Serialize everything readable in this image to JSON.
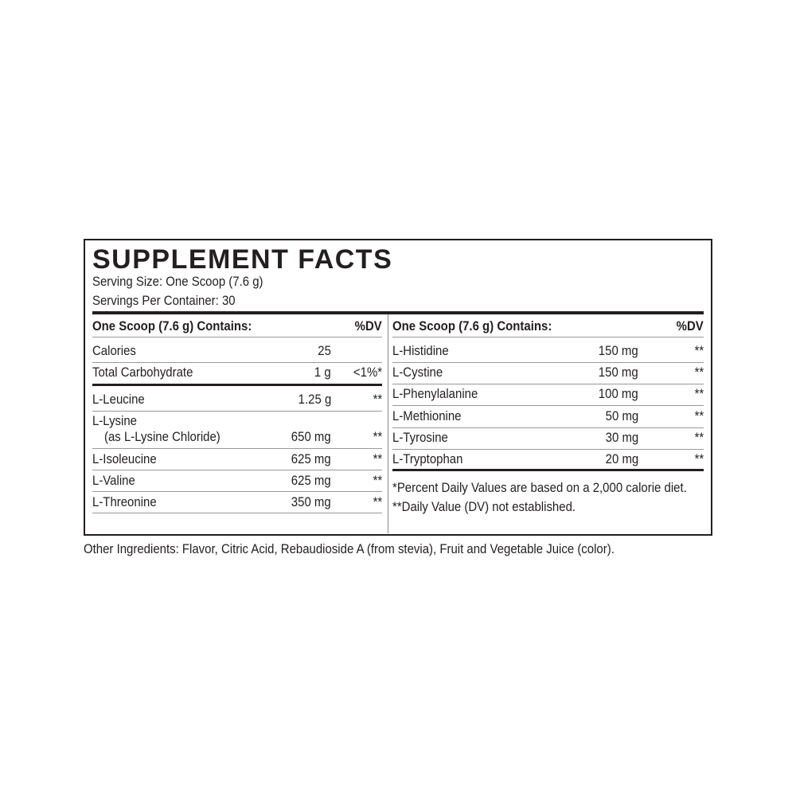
{
  "title": "SUPPLEMENT FACTS",
  "serving_size": "Serving Size: One Scoop (7.6 g)",
  "servings_per_container": "Servings Per Container: 30",
  "left": {
    "header": "One Scoop (7.6 g) Contains:",
    "dv_header": "%DV",
    "rows": [
      {
        "name": "Calories",
        "amount": "25",
        "dv": ""
      },
      {
        "name": "Total Carbohydrate",
        "amount": "1 g",
        "dv": "<1%*"
      },
      {
        "name": "L-Leucine",
        "amount": "1.25 g",
        "dv": "**"
      },
      {
        "name": "L-Lysine",
        "sub": "(as L-Lysine Chloride)",
        "amount": "650 mg",
        "dv": "**"
      },
      {
        "name": "L-Isoleucine",
        "amount": "625 mg",
        "dv": "**"
      },
      {
        "name": "L-Valine",
        "amount": "625 mg",
        "dv": "**"
      },
      {
        "name": "L-Threonine",
        "amount": "350 mg",
        "dv": "**"
      }
    ]
  },
  "right": {
    "header": "One Scoop (7.6 g) Contains:",
    "dv_header": "%DV",
    "rows": [
      {
        "name": "L-Histidine",
        "amount": "150 mg",
        "dv": "**"
      },
      {
        "name": "L-Cystine",
        "amount": "150 mg",
        "dv": "**"
      },
      {
        "name": "L-Phenylalanine",
        "amount": "100 mg",
        "dv": "**"
      },
      {
        "name": "L-Methionine",
        "amount": "50 mg",
        "dv": "**"
      },
      {
        "name": "L-Tyrosine",
        "amount": "30 mg",
        "dv": "**"
      },
      {
        "name": "L-Tryptophan",
        "amount": "20 mg",
        "dv": "**"
      }
    ],
    "footnote1": "*Percent Daily Values are based on a 2,000 calorie diet.",
    "footnote2": "**Daily Value (DV) not established."
  },
  "other_ingredients": "Other Ingredients: Flavor, Citric Acid, Rebaudioside A (from stevia), Fruit and Vegetable Juice (color)."
}
